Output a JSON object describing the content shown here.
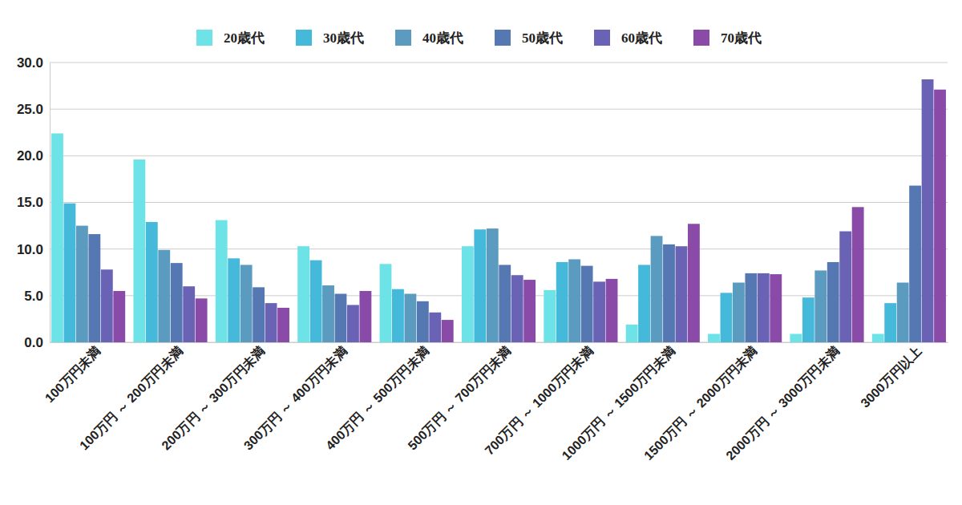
{
  "chart_data": {
    "type": "bar",
    "categories": [
      "100万円未満",
      "100万円 ～ 200万円未満",
      "200万円 ～ 300万円未満",
      "300万円 ～ 400万円未満",
      "400万円 ～ 500万円未満",
      "500万円 ～ 700万円未満",
      "700万円 ～ 1000万円未満",
      "1000万円 ～ 1500万円未満",
      "1500万円 ～ 2000万円未満",
      "2000万円 ～ 3000万円未満",
      "3000万円以上"
    ],
    "series": [
      {
        "name": "20歳代",
        "color": "#6de3e8",
        "values": [
          22.4,
          19.6,
          13.1,
          10.3,
          8.4,
          10.3,
          5.6,
          1.9,
          0.9,
          0.9,
          0.9
        ]
      },
      {
        "name": "30歳代",
        "color": "#45b9d9",
        "values": [
          14.9,
          12.9,
          9.0,
          8.8,
          5.7,
          12.1,
          8.6,
          8.3,
          5.3,
          4.8,
          4.2
        ]
      },
      {
        "name": "40歳代",
        "color": "#5a9bbf",
        "values": [
          12.5,
          9.9,
          8.3,
          6.1,
          5.2,
          12.2,
          8.9,
          11.4,
          6.4,
          7.7,
          6.4
        ]
      },
      {
        "name": "50歳代",
        "color": "#5578b3",
        "values": [
          11.6,
          8.5,
          5.9,
          5.2,
          4.4,
          8.3,
          8.2,
          10.5,
          7.4,
          8.6,
          16.8
        ]
      },
      {
        "name": "60歳代",
        "color": "#6a62b5",
        "values": [
          7.8,
          6.0,
          4.2,
          4.0,
          3.2,
          7.2,
          6.5,
          10.3,
          7.4,
          11.9,
          28.2
        ]
      },
      {
        "name": "70歳代",
        "color": "#8a4aa8",
        "values": [
          5.5,
          4.7,
          3.7,
          5.5,
          2.4,
          6.7,
          6.8,
          12.7,
          7.3,
          14.5,
          27.1
        ]
      }
    ],
    "ylim": [
      0,
      30
    ],
    "yticks": [
      {
        "value": 0,
        "label": "0.0"
      },
      {
        "value": 5,
        "label": "5.0"
      },
      {
        "value": 10,
        "label": "10.0"
      },
      {
        "value": 15,
        "label": "15.0"
      },
      {
        "value": 20,
        "label": "20.0"
      },
      {
        "value": 25,
        "label": "25.0"
      },
      {
        "value": 30,
        "label": "30.0"
      }
    ],
    "grid": true,
    "legend": "top"
  }
}
